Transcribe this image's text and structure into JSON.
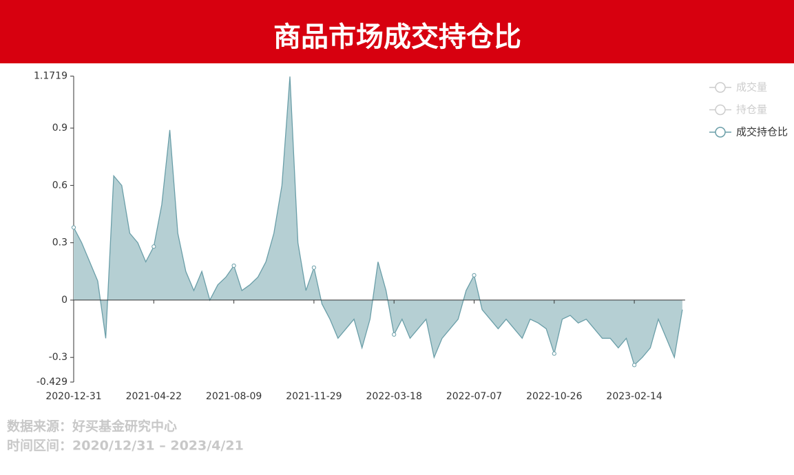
{
  "chart_data": {
    "type": "area",
    "title": "商品市场成交持仓比",
    "categories": [
      "2020-12-31",
      null,
      null,
      null,
      null,
      null,
      null,
      null,
      null,
      null,
      "2021-04-22",
      null,
      null,
      null,
      null,
      null,
      null,
      null,
      null,
      null,
      "2021-08-09",
      null,
      null,
      null,
      null,
      null,
      null,
      null,
      null,
      null,
      "2021-11-29",
      null,
      null,
      null,
      null,
      null,
      null,
      null,
      null,
      null,
      "2022-03-18",
      null,
      null,
      null,
      null,
      null,
      null,
      null,
      null,
      null,
      "2022-07-07",
      null,
      null,
      null,
      null,
      null,
      null,
      null,
      null,
      null,
      "2022-10-26",
      null,
      null,
      null,
      null,
      null,
      null,
      null,
      null,
      null,
      "2023-02-14",
      null,
      null,
      null,
      null,
      null,
      null
    ],
    "legend": [
      {
        "name": "成交量",
        "active": false
      },
      {
        "name": "持仓量",
        "active": false
      }
    ],
    "series": [
      {
        "name": "成交持仓比",
        "color": "#6a9ea8",
        "fill": "#b5cfd3",
        "values": [
          0.38,
          0.3,
          0.2,
          0.1,
          -0.2,
          0.65,
          0.6,
          0.35,
          0.3,
          0.2,
          0.28,
          0.5,
          0.89,
          0.35,
          0.15,
          0.05,
          0.15,
          0.0,
          0.08,
          0.12,
          0.18,
          0.05,
          0.08,
          0.12,
          0.2,
          0.35,
          0.6,
          1.17,
          0.3,
          0.05,
          0.17,
          -0.02,
          -0.1,
          -0.2,
          -0.15,
          -0.1,
          -0.25,
          -0.1,
          0.2,
          0.05,
          -0.18,
          -0.1,
          -0.2,
          -0.15,
          -0.1,
          -0.3,
          -0.2,
          -0.15,
          -0.1,
          0.05,
          0.13,
          -0.05,
          -0.1,
          -0.15,
          -0.1,
          -0.15,
          -0.2,
          -0.1,
          -0.12,
          -0.15,
          -0.28,
          -0.1,
          -0.08,
          -0.12,
          -0.1,
          -0.15,
          -0.2,
          -0.2,
          -0.25,
          -0.2,
          -0.34,
          -0.3,
          -0.25,
          -0.1,
          -0.2,
          -0.3,
          -0.05
        ]
      }
    ],
    "ylim": [
      -0.429,
      1.1719
    ],
    "yticks": [
      -0.429,
      -0.3,
      0,
      0.3,
      0.6,
      0.9,
      1.1719
    ],
    "notes": [
      "数据来源：好买基金研究中心",
      "时间区间：2020/12/31 – 2023/4/21"
    ]
  }
}
